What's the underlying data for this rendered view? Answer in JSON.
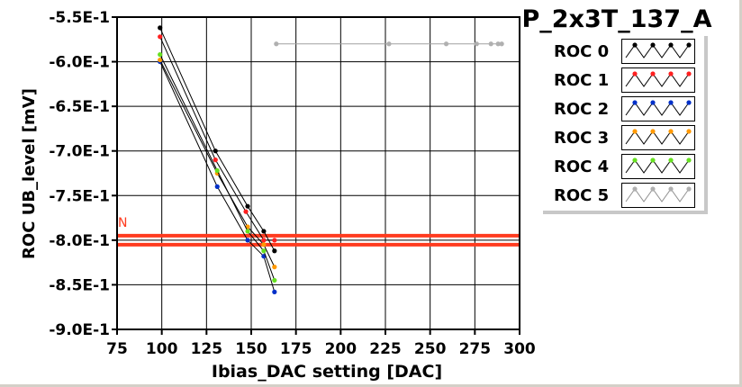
{
  "chart_data": {
    "type": "line",
    "title": "P_2x3T_137_A",
    "xlabel": "Ibias_DAC setting [DAC]",
    "ylabel": "ROC UB_level [mV]",
    "xlim": [
      75,
      300
    ],
    "ylim": [
      -0.9,
      -0.55
    ],
    "x_ticks": [
      "75",
      "100",
      "125",
      "150",
      "175",
      "200",
      "225",
      "250",
      "275",
      "300"
    ],
    "y_ticks": [
      "-5.5E-1",
      "-6.0E-1",
      "-6.5E-1",
      "-7.0E-1",
      "-7.5E-1",
      "-8.0E-1",
      "-8.5E-1",
      "-9.0E-1"
    ],
    "grid": true,
    "legend_position": "top-right",
    "threshold_lines": {
      "values": [
        -0.795,
        -0.805
      ],
      "color": "#ff3b1f",
      "label": "N"
    },
    "series": [
      {
        "name": "ROC 0",
        "color": "#000000",
        "points": [
          [
            99,
            -0.562
          ],
          [
            130,
            -0.7
          ],
          [
            148,
            -0.762
          ],
          [
            157,
            -0.79
          ],
          [
            163,
            -0.812
          ]
        ]
      },
      {
        "name": "ROC 1",
        "color": "#ff2020",
        "points": [
          [
            99,
            -0.572
          ],
          [
            130,
            -0.71
          ],
          [
            147,
            -0.768
          ],
          [
            157,
            -0.8
          ],
          [
            163,
            -0.8
          ]
        ]
      },
      {
        "name": "ROC 2",
        "color": "#0030c8",
        "points": [
          [
            99,
            -0.6
          ],
          [
            131,
            -0.74
          ],
          [
            148,
            -0.8
          ],
          [
            157,
            -0.818
          ],
          [
            163,
            -0.858
          ]
        ]
      },
      {
        "name": "ROC 3",
        "color": "#ff9900",
        "points": [
          [
            99,
            -0.598
          ],
          [
            131,
            -0.725
          ],
          [
            148,
            -0.785
          ],
          [
            157,
            -0.805
          ],
          [
            163,
            -0.83
          ]
        ]
      },
      {
        "name": "ROC 4",
        "color": "#66e020",
        "points": [
          [
            99,
            -0.592
          ],
          [
            131,
            -0.722
          ],
          [
            148,
            -0.79
          ],
          [
            157,
            -0.812
          ],
          [
            163,
            -0.845
          ]
        ]
      },
      {
        "name": "ROC 5",
        "color": "#b0b0b0",
        "points": [
          [
            164,
            -0.58
          ],
          [
            227,
            -0.58
          ],
          [
            259,
            -0.58
          ],
          [
            276,
            -0.58
          ],
          [
            284,
            -0.58
          ],
          [
            288,
            -0.58
          ],
          [
            290,
            -0.58
          ]
        ]
      }
    ]
  }
}
